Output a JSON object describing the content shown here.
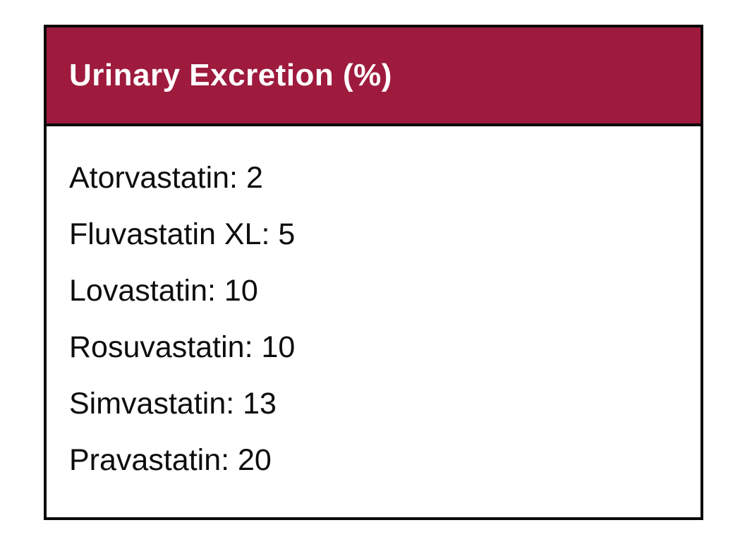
{
  "card": {
    "header": {
      "title": "Urinary Excretion (%)"
    },
    "items": [
      {
        "label": "Atorvastatin",
        "value": 2,
        "text": "Atorvastatin: 2"
      },
      {
        "label": "Fluvastatin XL",
        "value": 5,
        "text": "Fluvastatin XL: 5"
      },
      {
        "label": "Lovastatin",
        "value": 10,
        "text": "Lovastatin: 10"
      },
      {
        "label": "Rosuvastatin",
        "value": 10,
        "text": "Rosuvastatin: 10"
      },
      {
        "label": "Simvastatin",
        "value": 13,
        "text": "Simvastatin: 13"
      },
      {
        "label": "Pravastatin",
        "value": 20,
        "text": "Pravastatin: 20"
      }
    ],
    "colors": {
      "header_background": "#9e1b3e",
      "header_text": "#ffffff",
      "border": "#0a0a0a",
      "body_text": "#0d0d0d",
      "body_background": "#ffffff"
    }
  }
}
